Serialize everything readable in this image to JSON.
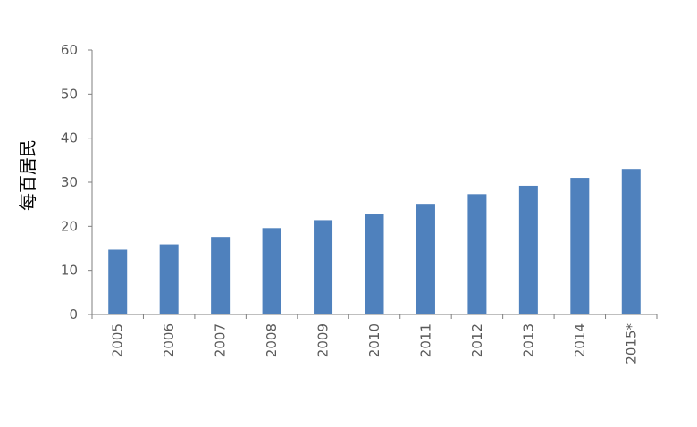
{
  "chart_data": {
    "type": "bar",
    "title": "",
    "xlabel": "",
    "ylabel": "每百居民",
    "categories": [
      "2005",
      "2006",
      "2007",
      "2008",
      "2009",
      "2010",
      "2011",
      "2012",
      "2013",
      "2014",
      "2015*"
    ],
    "values": [
      14.7,
      15.9,
      17.6,
      19.6,
      21.4,
      22.7,
      25.1,
      27.3,
      29.2,
      31.0,
      33.0
    ],
    "ylim": [
      0,
      60
    ],
    "yticks": [
      "0",
      "10",
      "20",
      "30",
      "40",
      "50",
      "60"
    ],
    "grid": false,
    "legend": "none",
    "bar_color": "#4f81bd"
  }
}
